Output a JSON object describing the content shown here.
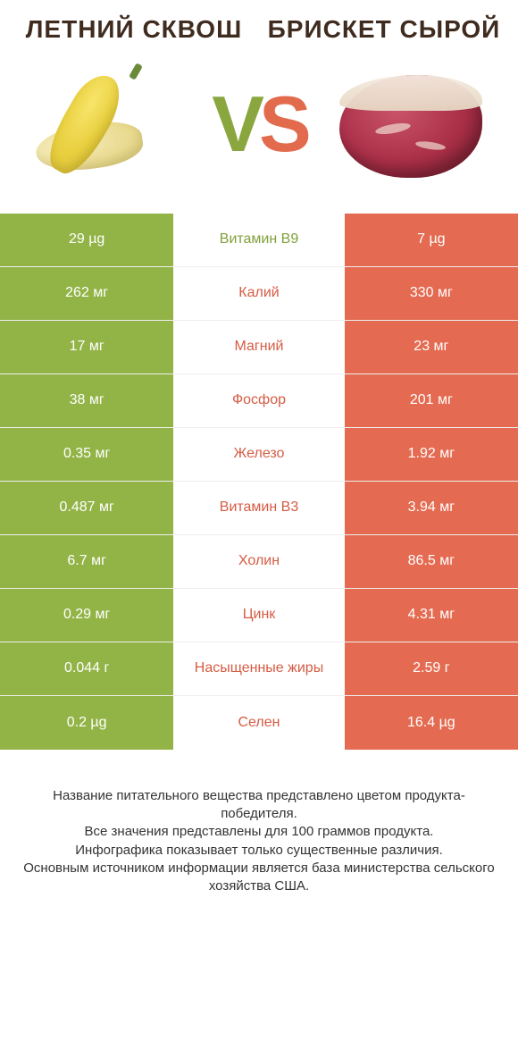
{
  "titles": {
    "left": "ЛЕТНИЙ СКВОШ",
    "right": "БРИСКЕТ СЫРОЙ"
  },
  "vs": {
    "v": "V",
    "s": "S"
  },
  "colors": {
    "left_bg": "#92b447",
    "right_bg": "#e46b51",
    "label_left": "#7fa03b",
    "label_right": "#d55c44"
  },
  "rows": [
    {
      "label": "Витамин B9",
      "left": "29 µg",
      "right": "7 µg",
      "winner": "left"
    },
    {
      "label": "Калий",
      "left": "262 мг",
      "right": "330 мг",
      "winner": "right"
    },
    {
      "label": "Магний",
      "left": "17 мг",
      "right": "23 мг",
      "winner": "right"
    },
    {
      "label": "Фосфор",
      "left": "38 мг",
      "right": "201 мг",
      "winner": "right"
    },
    {
      "label": "Железо",
      "left": "0.35 мг",
      "right": "1.92 мг",
      "winner": "right"
    },
    {
      "label": "Витамин B3",
      "left": "0.487 мг",
      "right": "3.94 мг",
      "winner": "right"
    },
    {
      "label": "Холин",
      "left": "6.7 мг",
      "right": "86.5 мг",
      "winner": "right"
    },
    {
      "label": "Цинк",
      "left": "0.29 мг",
      "right": "4.31 мг",
      "winner": "right"
    },
    {
      "label": "Насыщенные жиры",
      "left": "0.044 г",
      "right": "2.59 г",
      "winner": "right"
    },
    {
      "label": "Селен",
      "left": "0.2 µg",
      "right": "16.4 µg",
      "winner": "right"
    }
  ],
  "footnotes": [
    "Название питательного вещества представлено цветом продукта-победителя.",
    "Все значения представлены для 100 граммов продукта.",
    "Инфографика показывает только существенные различия.",
    "Основным источником информации является база министерства сельского хозяйства США."
  ]
}
